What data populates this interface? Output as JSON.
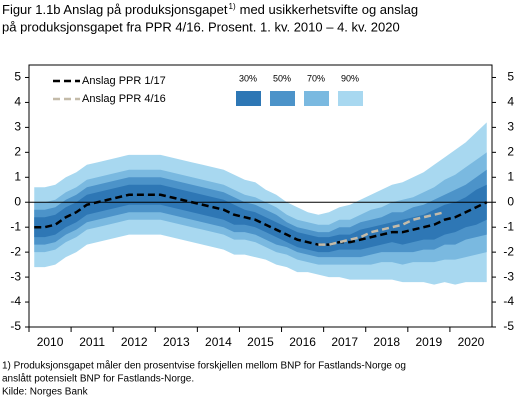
{
  "chart_data": {
    "type": "fan",
    "title": [
      "Figur 1.1b Anslag på produksjonsgapet",
      "1)",
      "med usikkerhetsvifte og anslag",
      "på produksjonsgapet fra PPR 4/16. Prosent. 1. kv. 2010 – 4. kv. 2020"
    ],
    "footnote": [
      "1) Produksjonsgapet måler den prosentvise forskjellen mellom BNP for Fastlands-Norge og",
      "anslått potensielt BNP for Fastlands-Norge."
    ],
    "source": "Kilde: Norges Bank",
    "categories": [
      "2010",
      null,
      null,
      null,
      "2011",
      null,
      null,
      null,
      "2012",
      null,
      null,
      null,
      "2013",
      null,
      null,
      null,
      "2014",
      null,
      null,
      null,
      "2015",
      null,
      null,
      null,
      "2016",
      null,
      null,
      null,
      "2017",
      null,
      null,
      null,
      "2018",
      null,
      null,
      null,
      "2019",
      null,
      null,
      null,
      "2020",
      null,
      null,
      null
    ],
    "ylim": [
      -5,
      5.5
    ],
    "yticks": [
      -5,
      -4,
      -3,
      -2,
      -1,
      0,
      1,
      2,
      3,
      4,
      5
    ],
    "series": [
      {
        "name": "Anslag PPR 1/17",
        "color": "#000000",
        "values": [
          -1.0,
          -1.0,
          -0.9,
          -0.6,
          -0.4,
          -0.1,
          0.0,
          0.1,
          0.2,
          0.3,
          0.3,
          0.3,
          0.3,
          0.2,
          0.1,
          0.0,
          -0.1,
          -0.2,
          -0.3,
          -0.5,
          -0.6,
          -0.7,
          -0.9,
          -1.1,
          -1.3,
          -1.5,
          -1.6,
          -1.7,
          -1.7,
          -1.6,
          -1.6,
          -1.5,
          -1.4,
          -1.3,
          -1.2,
          -1.2,
          -1.1,
          -1.0,
          -0.9,
          -0.7,
          -0.6,
          -0.4,
          -0.2,
          0.0
        ]
      },
      {
        "name": "Anslag PPR 4/16",
        "color": "#c4bba9",
        "values": [
          null,
          null,
          null,
          null,
          null,
          null,
          null,
          null,
          null,
          null,
          null,
          null,
          null,
          null,
          null,
          null,
          null,
          null,
          null,
          null,
          null,
          null,
          null,
          null,
          null,
          null,
          null,
          -1.7,
          -1.7,
          -1.6,
          -1.5,
          -1.4,
          -1.2,
          -1.1,
          -1.0,
          -0.9,
          -0.7,
          -0.6,
          -0.5,
          -0.4,
          null,
          null,
          null,
          null
        ]
      }
    ],
    "bands": [
      {
        "name": "90%",
        "color": "#a8d8f0",
        "lower": [
          -2.6,
          -2.6,
          -2.5,
          -2.2,
          -2.0,
          -1.7,
          -1.6,
          -1.5,
          -1.4,
          -1.3,
          -1.3,
          -1.3,
          -1.3,
          -1.4,
          -1.5,
          -1.6,
          -1.7,
          -1.8,
          -1.9,
          -2.1,
          -2.1,
          -2.2,
          -2.3,
          -2.5,
          -2.6,
          -2.8,
          -2.8,
          -2.9,
          -3.0,
          -3.0,
          -3.1,
          -3.1,
          -3.1,
          -3.1,
          -3.1,
          -3.2,
          -3.2,
          -3.2,
          -3.3,
          -3.2,
          -3.3,
          -3.2,
          -3.2,
          -3.2
        ],
        "upper": [
          0.6,
          0.6,
          0.7,
          1.0,
          1.2,
          1.5,
          1.6,
          1.7,
          1.8,
          1.9,
          1.9,
          1.9,
          1.9,
          1.8,
          1.7,
          1.6,
          1.5,
          1.4,
          1.3,
          1.1,
          0.9,
          0.8,
          0.5,
          0.3,
          0.0,
          -0.2,
          -0.4,
          -0.5,
          -0.4,
          -0.2,
          -0.1,
          0.1,
          0.3,
          0.5,
          0.7,
          0.8,
          1.0,
          1.2,
          1.5,
          1.8,
          2.1,
          2.4,
          2.8,
          3.2
        ]
      },
      {
        "name": "70%",
        "color": "#7ab9e0",
        "lower": [
          -2.0,
          -2.0,
          -1.9,
          -1.6,
          -1.4,
          -1.1,
          -1.0,
          -0.9,
          -0.8,
          -0.7,
          -0.7,
          -0.7,
          -0.7,
          -0.8,
          -0.9,
          -1.0,
          -1.1,
          -1.2,
          -1.3,
          -1.5,
          -1.5,
          -1.6,
          -1.8,
          -2.0,
          -2.1,
          -2.3,
          -2.4,
          -2.5,
          -2.5,
          -2.5,
          -2.5,
          -2.5,
          -2.5,
          -2.4,
          -2.4,
          -2.5,
          -2.4,
          -2.4,
          -2.4,
          -2.3,
          -2.3,
          -2.2,
          -2.1,
          -2.0
        ],
        "upper": [
          0.0,
          0.0,
          0.1,
          0.4,
          0.6,
          0.9,
          1.0,
          1.1,
          1.2,
          1.3,
          1.3,
          1.3,
          1.3,
          1.2,
          1.1,
          1.0,
          0.9,
          0.8,
          0.7,
          0.5,
          0.3,
          0.2,
          0.0,
          -0.2,
          -0.5,
          -0.7,
          -0.8,
          -0.9,
          -0.9,
          -0.7,
          -0.7,
          -0.5,
          -0.3,
          -0.2,
          0.0,
          0.1,
          0.2,
          0.4,
          0.6,
          0.9,
          1.1,
          1.4,
          1.7,
          2.0
        ]
      },
      {
        "name": "50%",
        "color": "#4c93c9",
        "lower": [
          -1.7,
          -1.7,
          -1.6,
          -1.3,
          -1.1,
          -0.8,
          -0.7,
          -0.6,
          -0.5,
          -0.4,
          -0.4,
          -0.4,
          -0.4,
          -0.5,
          -0.6,
          -0.7,
          -0.8,
          -0.9,
          -1.0,
          -1.2,
          -1.2,
          -1.3,
          -1.5,
          -1.7,
          -1.8,
          -2.0,
          -2.1,
          -2.2,
          -2.2,
          -2.2,
          -2.2,
          -2.2,
          -2.1,
          -2.0,
          -2.0,
          -2.0,
          -2.0,
          -1.9,
          -1.9,
          -1.7,
          -1.7,
          -1.5,
          -1.4,
          -1.3
        ],
        "upper": [
          -0.3,
          -0.3,
          -0.2,
          0.1,
          0.3,
          0.6,
          0.7,
          0.8,
          0.9,
          1.0,
          1.0,
          1.0,
          1.0,
          0.9,
          0.8,
          0.7,
          0.6,
          0.5,
          0.4,
          0.2,
          0.0,
          -0.1,
          -0.3,
          -0.5,
          -0.8,
          -1.0,
          -1.1,
          -1.2,
          -1.2,
          -1.0,
          -1.0,
          -0.8,
          -0.7,
          -0.6,
          -0.4,
          -0.4,
          -0.2,
          -0.1,
          0.1,
          0.3,
          0.5,
          0.7,
          1.0,
          1.3
        ]
      },
      {
        "name": "30%",
        "color": "#2e77b5",
        "lower": [
          -1.4,
          -1.4,
          -1.3,
          -1.0,
          -0.8,
          -0.5,
          -0.4,
          -0.3,
          -0.2,
          -0.1,
          -0.1,
          -0.1,
          -0.1,
          -0.2,
          -0.3,
          -0.4,
          -0.5,
          -0.6,
          -0.7,
          -0.9,
          -0.9,
          -1.0,
          -1.2,
          -1.4,
          -1.6,
          -1.8,
          -1.9,
          -2.0,
          -2.0,
          -1.9,
          -1.9,
          -1.9,
          -1.8,
          -1.7,
          -1.6,
          -1.7,
          -1.6,
          -1.5,
          -1.5,
          -1.3,
          -1.2,
          -1.0,
          -0.9,
          -0.7
        ],
        "upper": [
          -0.6,
          -0.6,
          -0.5,
          -0.2,
          0.0,
          0.3,
          0.4,
          0.5,
          0.6,
          0.7,
          0.7,
          0.7,
          0.7,
          0.6,
          0.5,
          0.4,
          0.3,
          0.2,
          0.1,
          -0.1,
          -0.3,
          -0.4,
          -0.6,
          -0.8,
          -1.0,
          -1.2,
          -1.3,
          -1.4,
          -1.4,
          -1.3,
          -1.3,
          -1.1,
          -1.0,
          -0.9,
          -0.8,
          -0.7,
          -0.6,
          -0.5,
          -0.3,
          -0.1,
          0.0,
          0.2,
          0.5,
          0.7
        ]
      }
    ]
  }
}
